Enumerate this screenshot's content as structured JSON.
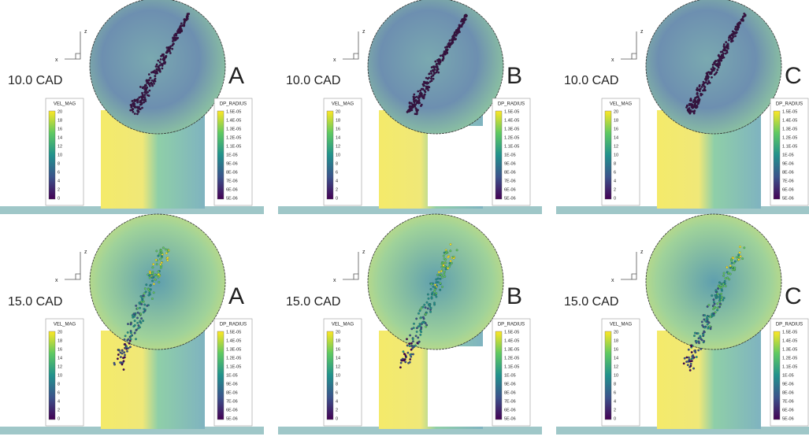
{
  "axis_labels": {
    "horizontal": "x",
    "vertical": "z"
  },
  "legend_velocity": {
    "title": "VEL_MAG",
    "labels": [
      "20",
      "18",
      "16",
      "14",
      "12",
      "10",
      "8",
      "6",
      "4",
      "2",
      "0"
    ]
  },
  "legend_radius": {
    "title": "DP_RADIUS",
    "labels": [
      "1.5E-05",
      "1.4E-05",
      "1.3E-05",
      "1.2E-05",
      "1.1E-05",
      "1E-05",
      "9E-06",
      "8E-06",
      "7E-06",
      "6E-06",
      "5E-06"
    ]
  },
  "panels": [
    {
      "time": "10.0 CAD",
      "case": "A"
    },
    {
      "time": "10.0 CAD",
      "case": "B"
    },
    {
      "time": "10.0 CAD",
      "case": "C"
    },
    {
      "time": "15.0 CAD",
      "case": "A"
    },
    {
      "time": "15.0 CAD",
      "case": "B"
    },
    {
      "time": "15.0 CAD",
      "case": "C"
    }
  ]
}
